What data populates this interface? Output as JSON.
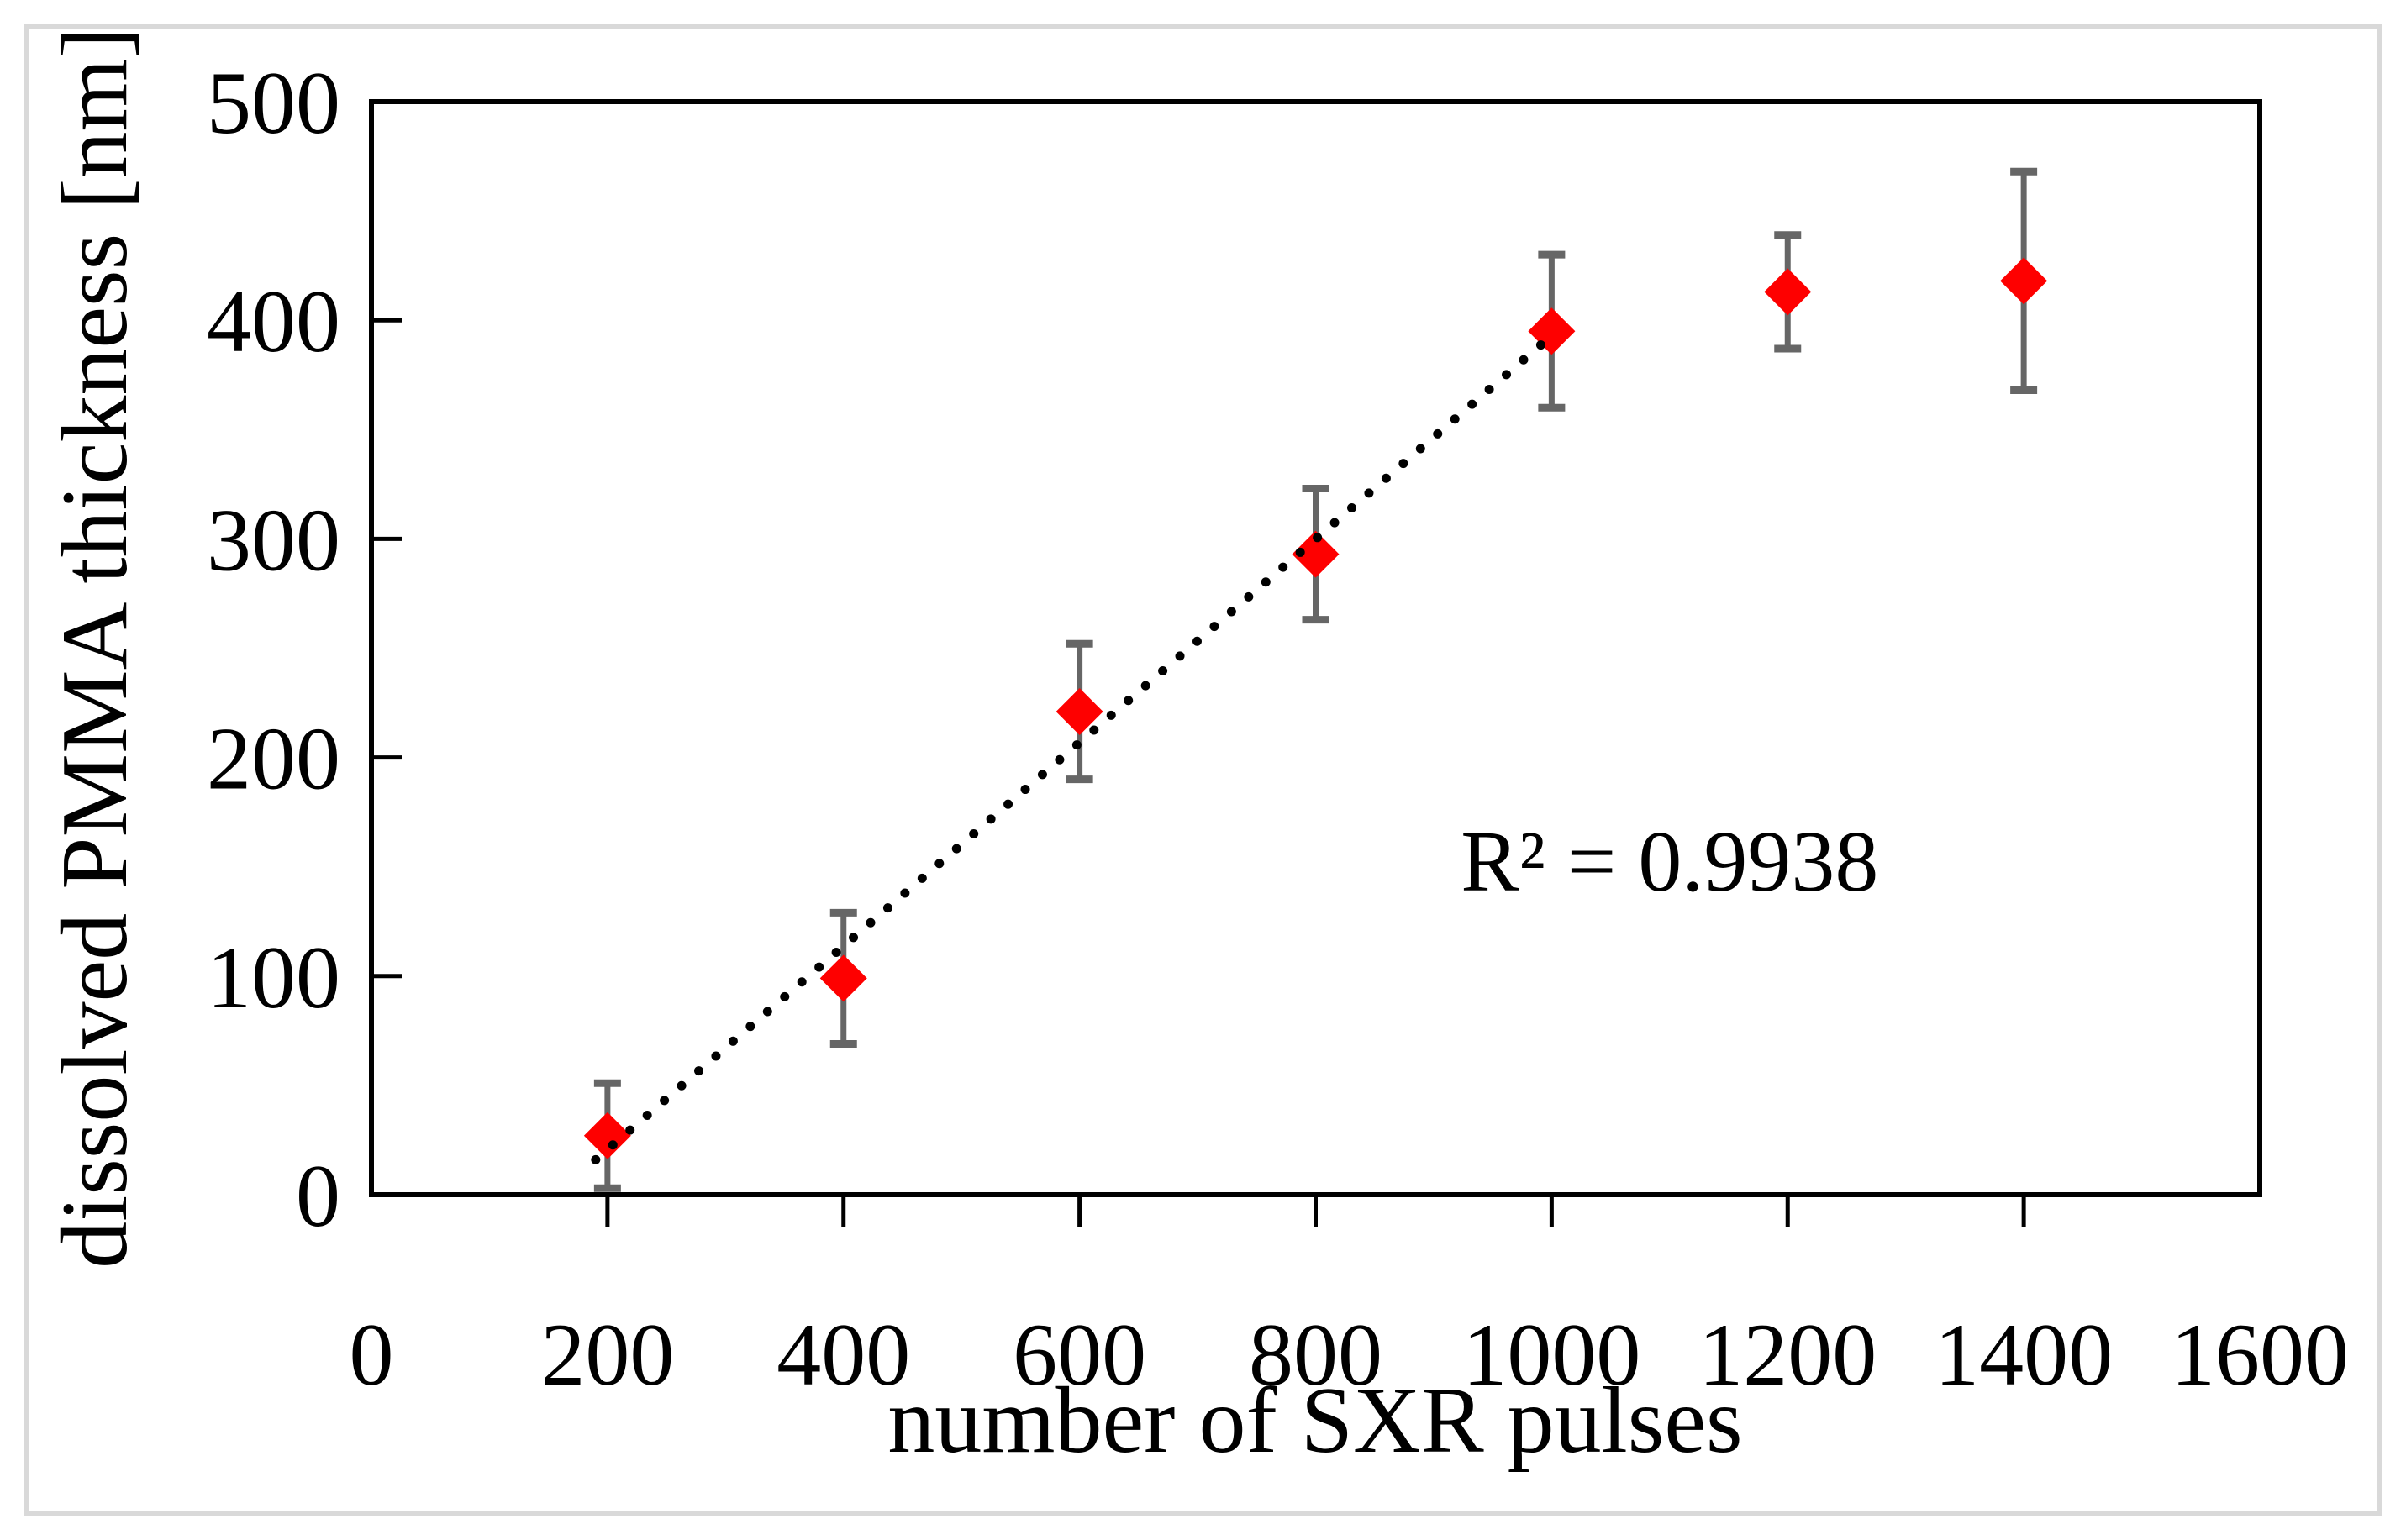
{
  "figure": {
    "background": "#ffffff",
    "frame_color": "#d9d9d9"
  },
  "chart_data": {
    "type": "scatter",
    "title": "",
    "xlabel": "number of SXR pulses",
    "ylabel": "dissolved PMMA thickness [nm]",
    "xlim": [
      0,
      1600
    ],
    "ylim": [
      0,
      500
    ],
    "xticks": [
      0,
      200,
      400,
      600,
      800,
      1000,
      1200,
      1400,
      1600
    ],
    "yticks": [
      0,
      100,
      200,
      300,
      400,
      500
    ],
    "grid": false,
    "legend": "none",
    "axis_color": "#000000",
    "series": [
      {
        "name": "dissolved PMMA thickness",
        "marker": "diamond",
        "marker_color": "#fe0000",
        "error_bar_color": "#666666",
        "points": [
          {
            "x": 200,
            "y": 27,
            "yerr": 24
          },
          {
            "x": 400,
            "y": 99,
            "yerr": 30
          },
          {
            "x": 600,
            "y": 221,
            "yerr": 31
          },
          {
            "x": 800,
            "y": 293,
            "yerr": 30
          },
          {
            "x": 1000,
            "y": 395,
            "yerr": 35
          },
          {
            "x": 1200,
            "y": 413,
            "yerr": 26
          },
          {
            "x": 1400,
            "y": 418,
            "yerr": 50
          }
        ]
      }
    ],
    "trendline": {
      "style": "dotted",
      "color": "#000000",
      "x1": 190,
      "y1": 16,
      "x2": 1000,
      "y2": 393,
      "annotation": "R² = 0.9938",
      "annotation_pos": {
        "x": 1100,
        "y": 153
      }
    }
  }
}
